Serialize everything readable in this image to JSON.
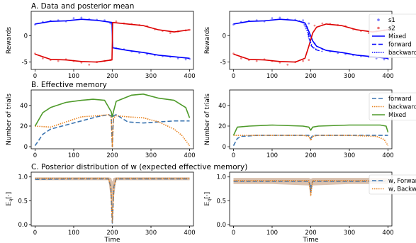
{
  "colors": {
    "s1": "#0000ff",
    "s2": "#dd0000",
    "forward": "#3b74b0",
    "backward": "#e8821e",
    "mixed": "#4e9a2a",
    "band": "#c9a58a"
  },
  "chart_data": [
    {
      "id": "A1",
      "type": "scatter",
      "title": "A. Data and posterior mean",
      "ylabel": "Rewards",
      "xlabel": "",
      "xlim": [
        -10,
        410
      ],
      "ylim": [
        -6.4,
        4.6
      ],
      "xticks": [
        "0",
        "100",
        "200",
        "300",
        "400"
      ],
      "xtick_values": [
        0,
        100,
        200,
        300,
        400
      ],
      "yticks": [
        "-5",
        "0"
      ],
      "ytick_values": [
        -5,
        0
      ],
      "series": [
        {
          "kind": "points",
          "color": "s1",
          "x": [
            0,
            20,
            40,
            60,
            80,
            100,
            120,
            140,
            160,
            180,
            195,
            210,
            230,
            250,
            270,
            290,
            310,
            330,
            350,
            370,
            390,
            400
          ],
          "y": [
            2.1,
            2.6,
            2.8,
            2.9,
            2.7,
            3.3,
            3.4,
            3.1,
            3.0,
            2.9,
            2.3,
            -2.4,
            -2.6,
            -3.0,
            -3.3,
            -3.5,
            -3.7,
            -3.9,
            -4.0,
            -4.3,
            -4.5,
            -4.4
          ]
        },
        {
          "kind": "points",
          "color": "s2",
          "x": [
            0,
            20,
            40,
            60,
            80,
            100,
            120,
            140,
            160,
            180,
            195,
            210,
            230,
            250,
            270,
            290,
            310,
            330,
            350,
            370,
            390,
            400
          ],
          "y": [
            -3.4,
            -4.3,
            -4.6,
            -4.8,
            -4.5,
            -4.8,
            -5.1,
            -5.5,
            -5.0,
            -4.8,
            -4.6,
            2.7,
            2.3,
            2.2,
            2.0,
            1.8,
            1.2,
            0.9,
            0.5,
            0.8,
            1.0,
            1.1
          ]
        },
        {
          "kind": "line",
          "color": "s1",
          "width": 1.6,
          "x": [
            0,
            40,
            80,
            120,
            160,
            199,
            201,
            240,
            280,
            320,
            360,
            400
          ],
          "y": [
            2.2,
            2.7,
            2.8,
            3.1,
            2.9,
            2.5,
            -2.3,
            -2.8,
            -3.2,
            -3.7,
            -4.0,
            -4.3
          ]
        },
        {
          "kind": "line",
          "color": "s2",
          "width": 1.6,
          "x": [
            0,
            40,
            80,
            120,
            160,
            199,
            201,
            240,
            280,
            320,
            360,
            400
          ],
          "y": [
            -3.5,
            -4.5,
            -4.6,
            -4.9,
            -5.0,
            -4.6,
            2.5,
            2.2,
            1.9,
            1.1,
            0.7,
            1.1
          ]
        }
      ]
    },
    {
      "id": "A2",
      "type": "scatter",
      "title": "",
      "ylabel": "Rewards",
      "xlabel": "",
      "xlim": [
        -10,
        410
      ],
      "ylim": [
        -6.4,
        4.6
      ],
      "xticks": [
        "0",
        "100",
        "200",
        "300",
        "400"
      ],
      "xtick_values": [
        0,
        100,
        200,
        300,
        400
      ],
      "yticks": [
        "-5",
        "0"
      ],
      "ytick_values": [
        -5,
        0
      ],
      "legend": {
        "placement": "right",
        "entries": [
          {
            "label": "s1",
            "kind": "marker",
            "color": "s1",
            "dash": ""
          },
          {
            "label": "s2",
            "kind": "marker",
            "color": "s2",
            "dash": ""
          },
          {
            "label": "Mixed",
            "kind": "line",
            "color": "s1",
            "dash": ""
          },
          {
            "label": "forward",
            "kind": "line",
            "color": "s1",
            "dash": "6 3"
          },
          {
            "label": "backward",
            "kind": "line",
            "color": "s1",
            "dash": "1.5 1.5"
          }
        ]
      },
      "series": [
        {
          "kind": "points",
          "color": "s1",
          "x": [
            0,
            20,
            40,
            60,
            80,
            100,
            120,
            140,
            160,
            180,
            195,
            210,
            230,
            250,
            270,
            290,
            310,
            330,
            350,
            370,
            390,
            400
          ],
          "y": [
            2.1,
            2.6,
            2.8,
            2.9,
            2.7,
            3.3,
            3.4,
            3.1,
            3.0,
            2.9,
            2.3,
            -1.5,
            -2.6,
            -3.0,
            -3.3,
            -3.5,
            -3.7,
            -3.9,
            -4.0,
            -4.3,
            -4.5,
            -4.4
          ]
        },
        {
          "kind": "points",
          "color": "s2",
          "x": [
            0,
            20,
            40,
            60,
            80,
            100,
            120,
            140,
            160,
            180,
            195,
            210,
            230,
            250,
            270,
            290,
            310,
            330,
            350,
            370,
            390,
            400
          ],
          "y": [
            -3.4,
            -4.3,
            -4.6,
            -4.8,
            -4.5,
            -4.8,
            -5.1,
            -5.5,
            -5.0,
            -4.8,
            -4.6,
            1.9,
            2.3,
            2.2,
            2.0,
            1.8,
            1.2,
            0.9,
            0.5,
            0.8,
            1.0,
            1.1
          ]
        },
        {
          "kind": "line",
          "color": "s1",
          "width": 1.6,
          "x": [
            0,
            40,
            80,
            120,
            160,
            185,
            195,
            205,
            215,
            240,
            280,
            320,
            360,
            400
          ],
          "y": [
            2.2,
            2.7,
            2.8,
            3.1,
            2.9,
            2.4,
            0.8,
            -1.0,
            -2.0,
            -2.8,
            -3.2,
            -3.7,
            -4.0,
            -4.3
          ]
        },
        {
          "kind": "line",
          "color": "s2",
          "width": 1.6,
          "x": [
            0,
            40,
            80,
            120,
            160,
            185,
            195,
            205,
            215,
            240,
            280,
            320,
            360,
            400
          ],
          "y": [
            -3.5,
            -4.5,
            -4.6,
            -4.9,
            -5.0,
            -4.3,
            -2.0,
            0.5,
            1.6,
            2.2,
            1.9,
            1.1,
            0.7,
            1.1
          ]
        },
        {
          "kind": "line",
          "color": "s1",
          "width": 1.3,
          "dash": "6 3",
          "x": [
            180,
            190,
            200,
            210,
            220,
            230
          ],
          "y": [
            2.6,
            2.0,
            -1.8,
            -2.6,
            -2.8,
            -3.0
          ]
        },
        {
          "kind": "line",
          "color": "s1",
          "width": 1.3,
          "dash": "1.5 1.5",
          "x": [
            170,
            180,
            190,
            195,
            205,
            215
          ],
          "y": [
            2.8,
            2.5,
            1.0,
            -0.5,
            -2.2,
            -2.6
          ]
        }
      ]
    },
    {
      "id": "B1",
      "type": "line",
      "title": "B. Effective memory",
      "ylabel": "Number of trials",
      "xlabel": "",
      "xlim": [
        -10,
        410
      ],
      "ylim": [
        -2,
        55
      ],
      "xticks": [
        "0",
        "100",
        "200",
        "300",
        "400"
      ],
      "xtick_values": [
        0,
        100,
        200,
        300,
        400
      ],
      "yticks": [
        "0",
        "20",
        "40"
      ],
      "ytick_values": [
        0,
        20,
        40
      ],
      "series": [
        {
          "kind": "line",
          "color": "forward",
          "width": 1.6,
          "dash": "6 3",
          "x": [
            0,
            20,
            40,
            80,
            120,
            160,
            190,
            197,
            200,
            203,
            210,
            240,
            280,
            320,
            360,
            400
          ],
          "y": [
            1,
            12,
            17,
            21,
            25,
            29,
            31,
            30,
            0,
            30,
            31,
            24,
            23,
            24,
            25,
            25
          ]
        },
        {
          "kind": "line",
          "color": "backward",
          "width": 1.6,
          "dash": "1.5 1.5",
          "x": [
            0,
            40,
            80,
            120,
            160,
            190,
            197,
            200,
            203,
            210,
            240,
            280,
            320,
            360,
            380,
            400
          ],
          "y": [
            20,
            19,
            24,
            29,
            30,
            31,
            29,
            0,
            28,
            30,
            29,
            28,
            24,
            17,
            11,
            1
          ]
        },
        {
          "kind": "line",
          "color": "mixed",
          "width": 1.6,
          "x": [
            0,
            20,
            40,
            80,
            120,
            150,
            180,
            197,
            200,
            203,
            210,
            250,
            280,
            320,
            360,
            390,
            400
          ],
          "y": [
            20,
            33,
            38,
            43,
            45,
            46,
            45,
            34,
            29,
            34,
            44,
            50,
            51,
            47,
            45,
            38,
            28
          ]
        }
      ]
    },
    {
      "id": "B2",
      "type": "line",
      "title": "",
      "ylabel": "Number of trials",
      "xlabel": "",
      "xlim": [
        -10,
        410
      ],
      "ylim": [
        -2,
        55
      ],
      "xticks": [
        "0",
        "100",
        "200",
        "300",
        "400"
      ],
      "xtick_values": [
        0,
        100,
        200,
        300,
        400
      ],
      "yticks": [
        "0",
        "20",
        "40"
      ],
      "ytick_values": [
        0,
        20,
        40
      ],
      "legend": {
        "placement": "right",
        "entries": [
          {
            "label": "forward",
            "kind": "line",
            "color": "forward",
            "dash": "6 3"
          },
          {
            "label": "backward",
            "kind": "line",
            "color": "backward",
            "dash": "1.5 1.5"
          },
          {
            "label": "Mixed",
            "kind": "line",
            "color": "mixed",
            "dash": ""
          }
        ]
      },
      "series": [
        {
          "kind": "line",
          "color": "forward",
          "width": 1.6,
          "dash": "6 3",
          "x": [
            0,
            10,
            20,
            60,
            120,
            180,
            195,
            200,
            205,
            220,
            300,
            380,
            400
          ],
          "y": [
            1,
            8,
            10,
            11,
            11,
            11,
            11,
            8,
            11,
            11,
            11,
            11,
            11
          ]
        },
        {
          "kind": "line",
          "color": "backward",
          "width": 1.6,
          "dash": "1.5 1.5",
          "x": [
            0,
            40,
            120,
            180,
            195,
            200,
            205,
            220,
            300,
            370,
            390,
            400
          ],
          "y": [
            11,
            11,
            11,
            11,
            10,
            6,
            10,
            11,
            11,
            10,
            7,
            1
          ]
        },
        {
          "kind": "line",
          "color": "mixed",
          "width": 1.6,
          "x": [
            0,
            10,
            40,
            100,
            180,
            195,
            200,
            205,
            220,
            300,
            380,
            395,
            400
          ],
          "y": [
            11,
            19,
            20,
            21,
            20,
            19,
            16,
            19,
            20,
            21,
            21,
            20,
            14
          ]
        }
      ]
    },
    {
      "id": "C1",
      "type": "line",
      "title": "C. Posterior distribution of w (expected effective memory)",
      "ylabel": "𝔼_q[·]",
      "xlabel": "Time",
      "xlim": [
        -10,
        410
      ],
      "ylim": [
        -0.03,
        1.1
      ],
      "xticks": [
        "0",
        "100",
        "200",
        "300",
        "400"
      ],
      "xtick_values": [
        0,
        100,
        200,
        300,
        400
      ],
      "yticks": [
        "0.0",
        "0.5",
        "1.0"
      ],
      "ytick_values": [
        0,
        0.5,
        1.0
      ],
      "band": {
        "x": [
          0,
          100,
          190,
          197,
          200,
          203,
          210,
          300,
          400
        ],
        "lo": [
          0.93,
          0.93,
          0.93,
          0.5,
          0.03,
          0.5,
          0.93,
          0.93,
          0.93
        ],
        "hi": [
          0.99,
          0.99,
          0.99,
          0.98,
          0.9,
          0.98,
          0.99,
          0.99,
          0.99
        ]
      },
      "series": [
        {
          "kind": "line",
          "color": "forward",
          "width": 1.6,
          "dash": "6 3",
          "x": [
            0,
            100,
            190,
            196,
            199,
            200,
            201,
            204,
            210,
            300,
            400
          ],
          "y": [
            0.95,
            0.96,
            0.96,
            0.8,
            0.2,
            0.03,
            0.2,
            0.8,
            0.96,
            0.96,
            0.96
          ]
        },
        {
          "kind": "line",
          "color": "backward",
          "width": 1.6,
          "dash": "1.5 1.5",
          "x": [
            0,
            100,
            190,
            196,
            199,
            200,
            201,
            204,
            210,
            300,
            400
          ],
          "y": [
            0.97,
            0.97,
            0.97,
            0.8,
            0.2,
            0.05,
            0.2,
            0.8,
            0.97,
            0.97,
            0.97
          ]
        }
      ]
    },
    {
      "id": "C2",
      "type": "line",
      "title": "",
      "ylabel": "𝔼_q[·]",
      "xlabel": "Time",
      "xlim": [
        -10,
        410
      ],
      "ylim": [
        -0.03,
        1.1
      ],
      "xticks": [
        "0",
        "100",
        "200",
        "300",
        "400"
      ],
      "xtick_values": [
        0,
        100,
        200,
        300,
        400
      ],
      "yticks": [
        "0.0",
        "0.5",
        "1.0"
      ],
      "ytick_values": [
        0,
        0.5,
        1.0
      ],
      "legend": {
        "placement": "right",
        "entries": [
          {
            "label": "w, Forward",
            "kind": "line",
            "color": "forward",
            "dash": "6 3"
          },
          {
            "label": "w, Backward",
            "kind": "line",
            "color": "backward",
            "dash": "1.5 1.5"
          }
        ]
      },
      "band": {
        "x": [
          0,
          100,
          195,
          200,
          205,
          300,
          400
        ],
        "lo": [
          0.85,
          0.85,
          0.82,
          0.58,
          0.82,
          0.85,
          0.85
        ],
        "hi": [
          0.98,
          0.98,
          0.98,
          0.96,
          0.98,
          0.98,
          0.98
        ]
      },
      "series": [
        {
          "kind": "line",
          "color": "forward",
          "width": 1.6,
          "dash": "6 3",
          "x": [
            0,
            100,
            195,
            199,
            200,
            201,
            205,
            300,
            400
          ],
          "y": [
            0.91,
            0.91,
            0.91,
            0.8,
            0.68,
            0.8,
            0.91,
            0.91,
            0.91
          ]
        },
        {
          "kind": "line",
          "color": "backward",
          "width": 1.6,
          "dash": "1.5 1.5",
          "x": [
            0,
            100,
            195,
            199,
            200,
            201,
            205,
            300,
            400
          ],
          "y": [
            0.92,
            0.92,
            0.92,
            0.7,
            0.6,
            0.7,
            0.92,
            0.92,
            0.92
          ]
        }
      ]
    }
  ]
}
